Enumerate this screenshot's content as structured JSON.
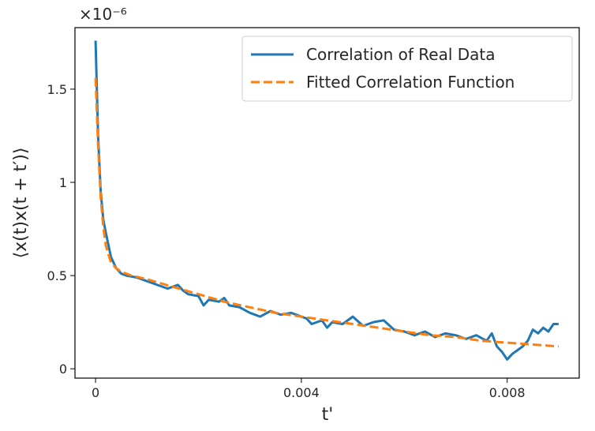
{
  "chart_data": {
    "type": "line",
    "title": "",
    "xlabel": "t'",
    "ylabel": "⟨x(t)x(t + t′)⟩",
    "y_offset_text": "×10⁻⁶",
    "xlim": [
      -0.0004,
      0.0094
    ],
    "ylim": [
      -0.05,
      1.83
    ],
    "x_ticks": [
      0,
      0.004,
      0.008
    ],
    "x_tick_labels": [
      "0",
      "0.004",
      "0.008"
    ],
    "y_ticks": [
      0,
      0.5,
      1.0,
      1.5
    ],
    "y_tick_labels": [
      "0",
      "0.5",
      "1",
      "1.5"
    ],
    "grid": false,
    "legend_position": "top-right",
    "series": [
      {
        "name": "Correlation of Real Data",
        "color": "#1f77b4",
        "style": "solid",
        "x": [
          0,
          5e-05,
          0.0001,
          0.00015,
          0.0002,
          0.0003,
          0.0004,
          0.0005,
          0.0006,
          0.0008,
          0.001,
          0.0012,
          0.0014,
          0.0015,
          0.0016,
          0.0017,
          0.0018,
          0.002,
          0.0021,
          0.0022,
          0.0024,
          0.0025,
          0.0026,
          0.0028,
          0.003,
          0.0032,
          0.0034,
          0.0036,
          0.0038,
          0.004,
          0.0041,
          0.0042,
          0.0044,
          0.0045,
          0.0046,
          0.0048,
          0.005,
          0.0052,
          0.0054,
          0.0056,
          0.0058,
          0.006,
          0.0062,
          0.0064,
          0.0066,
          0.0068,
          0.007,
          0.0072,
          0.0074,
          0.0076,
          0.0077,
          0.0078,
          0.0079,
          0.008,
          0.0081,
          0.0082,
          0.0083,
          0.0084,
          0.0085,
          0.0086,
          0.0087,
          0.0088,
          0.0089,
          0.009
        ],
        "values": [
          1.76,
          1.25,
          0.95,
          0.8,
          0.73,
          0.6,
          0.54,
          0.51,
          0.5,
          0.49,
          0.47,
          0.45,
          0.43,
          0.44,
          0.45,
          0.42,
          0.4,
          0.39,
          0.34,
          0.37,
          0.36,
          0.38,
          0.34,
          0.33,
          0.3,
          0.28,
          0.31,
          0.29,
          0.3,
          0.28,
          0.27,
          0.24,
          0.26,
          0.22,
          0.25,
          0.24,
          0.28,
          0.23,
          0.25,
          0.26,
          0.21,
          0.2,
          0.18,
          0.2,
          0.17,
          0.19,
          0.18,
          0.16,
          0.18,
          0.15,
          0.19,
          0.12,
          0.09,
          0.05,
          0.08,
          0.1,
          0.12,
          0.15,
          0.21,
          0.19,
          0.22,
          0.2,
          0.24,
          0.24
        ]
      },
      {
        "name": "Fitted Correlation Function",
        "color": "#ff7f0e",
        "style": "dashed",
        "x": [
          0,
          5e-05,
          0.0001,
          0.00015,
          0.0002,
          0.0003,
          0.0004,
          0.0005,
          0.0007,
          0.001,
          0.0015,
          0.002,
          0.0025,
          0.003,
          0.0035,
          0.004,
          0.0045,
          0.005,
          0.0055,
          0.006,
          0.0065,
          0.007,
          0.0075,
          0.008,
          0.0085,
          0.009
        ],
        "values": [
          1.56,
          1.2,
          0.92,
          0.76,
          0.66,
          0.57,
          0.54,
          0.52,
          0.5,
          0.48,
          0.44,
          0.4,
          0.36,
          0.33,
          0.3,
          0.28,
          0.26,
          0.24,
          0.22,
          0.2,
          0.18,
          0.17,
          0.15,
          0.14,
          0.13,
          0.12
        ]
      }
    ]
  }
}
